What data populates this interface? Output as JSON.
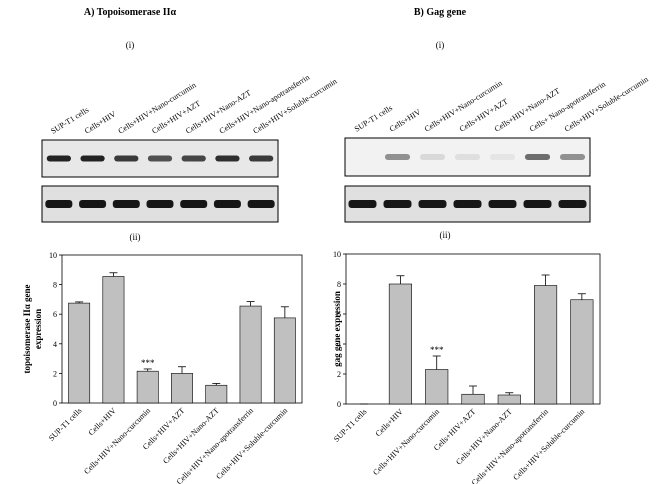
{
  "chart_data": [
    {
      "type": "bar",
      "panel_title": "A) Topoisomerase IIα",
      "blot_label": "(i)",
      "chart_label": "(ii)",
      "lanes": [
        "SUP-T1 cells",
        "Cells+HIV",
        "Cells+HIV+Nano-curcumin",
        "Cells+HIV+AZT",
        "Cells+HIV+Nano-AZT",
        "Cells+HIV+Nano-apotransferrin",
        "Cells+HIV+Soluble-curcumin"
      ],
      "y_label": [
        "topoisomerase IIα gene",
        "expression"
      ],
      "categories": [
        "SUP-T1 cells",
        "Cells+HIV",
        "Cells+HIV+Nano-curcumin",
        "Cells+HIV+AZT",
        "Cells+HIV+Nano-AZT",
        "Cells+HIV+Nano-apotransferrin",
        "Cells+HIV+Soluble-curcumin"
      ],
      "values": [
        6.75,
        8.55,
        2.15,
        2.0,
        1.2,
        6.55,
        5.75
      ],
      "errors": [
        0.08,
        0.25,
        0.15,
        0.45,
        0.12,
        0.3,
        0.75
      ],
      "annotation": "***",
      "color": "#c0c0c0",
      "ylim": [
        0,
        10
      ],
      "yticks": [
        0,
        2,
        4,
        6,
        8,
        10
      ],
      "grid": false
    },
    {
      "type": "bar",
      "panel_title": "B) Gag gene",
      "blot_label": "(i)",
      "chart_label": "(ii)",
      "lanes": [
        "SUP-T1 cells",
        "Cells+HIV",
        "Cells+HIV+Nano-curcumin",
        "Cells+HIV+AZT",
        "Cells+HIV+Nano-AZT",
        "Cells+ Nano-apotransferrin",
        "Cells+HIV+Soluble-curcumin"
      ],
      "y_label": [
        "gag gene expression"
      ],
      "categories": [
        "SUP-T1 cells",
        "Cells+HIV",
        "Cells+HIV+Nano-curcumin",
        "Cells+HIV+AZT",
        "Cells+HIV+Nano-AZT",
        "Cells+HIV+Nano-apotransferrin",
        "Cells+HIV+Soluble-curcumin"
      ],
      "values": [
        0,
        8.0,
        2.3,
        0.65,
        0.6,
        7.9,
        6.95
      ],
      "errors": [
        0,
        0.55,
        0.9,
        0.55,
        0.15,
        0.7,
        0.4
      ],
      "annotation": "***",
      "color": "#c0c0c0",
      "ylim": [
        0,
        10
      ],
      "yticks": [
        0,
        2,
        4,
        6,
        8,
        10
      ],
      "grid": false
    }
  ]
}
